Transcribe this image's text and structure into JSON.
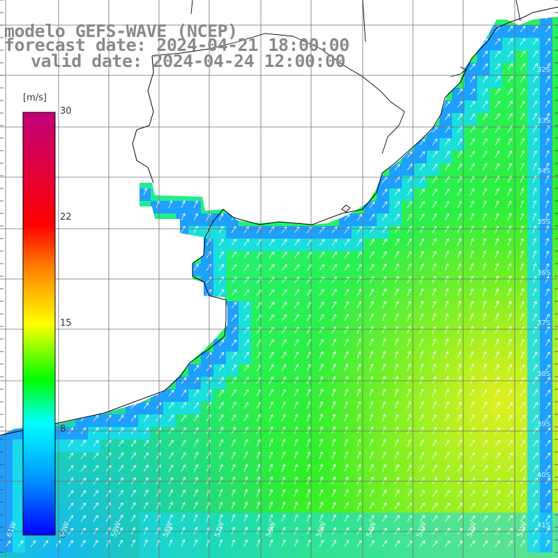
{
  "title": {
    "model": "modelo GEFS-WAVE (NCEP)",
    "forecast": "forecast date: 2024-04-21 18:00:00",
    "valid": "valid date: 2024-04-24 12:00:00"
  },
  "colorbar": {
    "unit": "[m/s]",
    "ticks": [
      {
        "label": "30",
        "value": 30
      },
      {
        "label": "22",
        "value": 22
      },
      {
        "label": "15",
        "value": 15
      },
      {
        "label": "8",
        "value": 8
      },
      {
        "label": "0",
        "value": 0
      }
    ],
    "stops": [
      {
        "value": 0,
        "color": "#0000ff"
      },
      {
        "value": 4,
        "color": "#0096ff"
      },
      {
        "value": 8,
        "color": "#00ffff"
      },
      {
        "value": 11,
        "color": "#00ff00"
      },
      {
        "value": 15,
        "color": "#ffff00"
      },
      {
        "value": 19,
        "color": "#ff8000"
      },
      {
        "value": 22,
        "color": "#ff0000"
      },
      {
        "value": 30,
        "color": "#c0007a"
      }
    ]
  },
  "map": {
    "lat_labels": [
      "32S",
      "33S",
      "34S",
      "35S",
      "36S",
      "37S",
      "38S",
      "39S",
      "40S",
      "41S"
    ],
    "lon_labels": [
      "61W",
      "60W",
      "59W",
      "58W",
      "57W",
      "56W",
      "55W",
      "54W",
      "53W",
      "52W",
      "51W"
    ],
    "ocean_colors": {
      "near_shore": "#1ea0ff",
      "coastal": "#19dcf0",
      "mid": "#19f0a0",
      "open": "#28f028",
      "strong": "#c8f028"
    },
    "arrow_color": "#ffffff",
    "grid_color": "#6e6e6e",
    "coast_color": "#000000"
  }
}
